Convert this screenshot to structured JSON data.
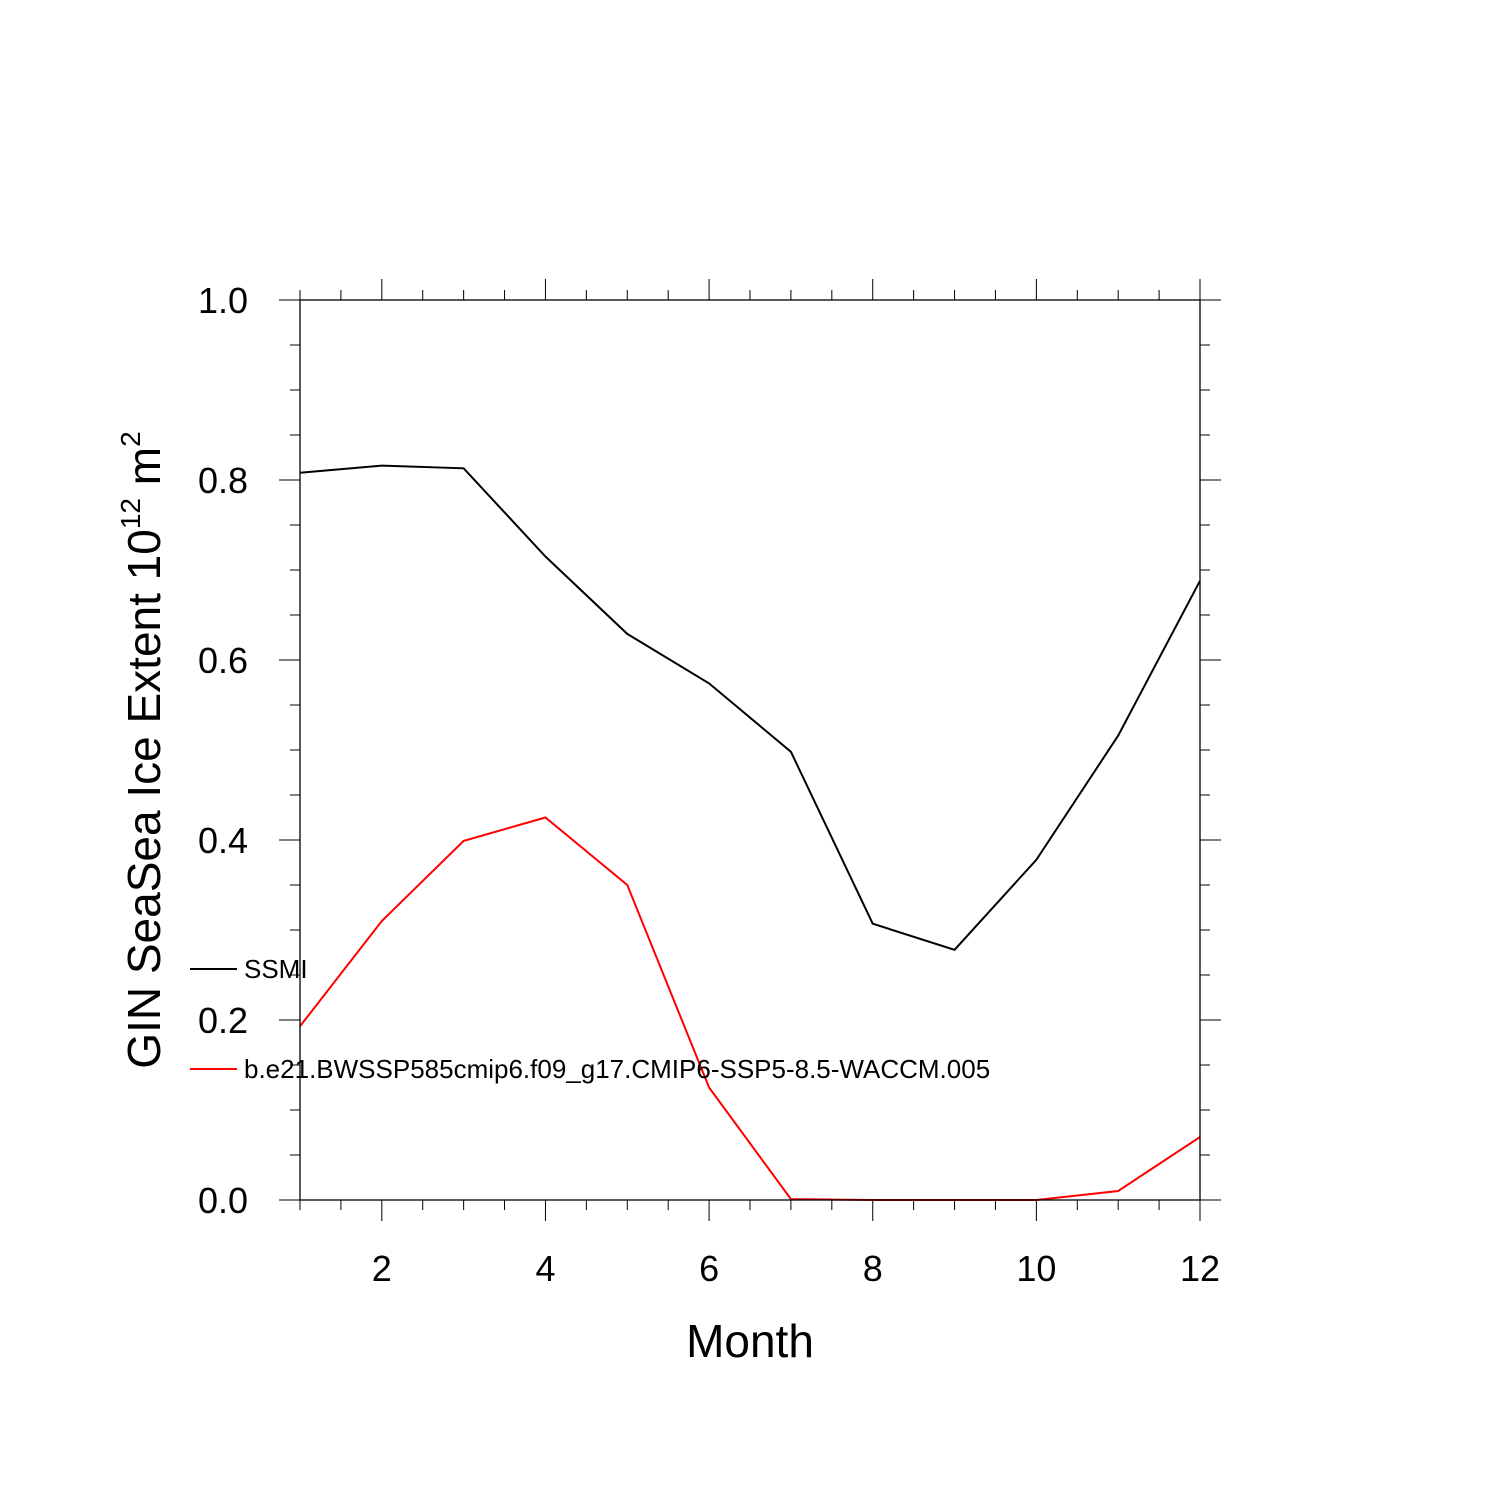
{
  "chart_data": {
    "type": "line",
    "title": "",
    "xlabel": "Month",
    "ylabel_main": "GIN SeaSea Ice Extent 10",
    "ylabel_exponent": "12",
    "ylabel_unit": " m",
    "ylabel_unit_exponent": "2",
    "x": [
      1,
      2,
      3,
      4,
      5,
      6,
      7,
      8,
      9,
      10,
      11,
      12
    ],
    "xlim": [
      1,
      12
    ],
    "ylim": [
      0,
      1
    ],
    "xticks": [
      "2",
      "4",
      "6",
      "8",
      "10",
      "12"
    ],
    "yticks": [
      "0.0",
      "0.2",
      "0.4",
      "0.6",
      "0.8",
      "1.0"
    ],
    "grid": false,
    "legend_position": "left, over plot",
    "series": [
      {
        "name": "SSMI",
        "color": "#000000",
        "values": [
          0.808,
          0.816,
          0.813,
          0.715,
          0.629,
          0.574,
          0.498,
          0.307,
          0.278,
          0.378,
          0.516,
          0.688
        ]
      },
      {
        "name": "b.e21.BWSSP585cmip6.f09_g17.CMIP6-SSP5-8.5-WACCM.005",
        "color": "#ff0000",
        "values": [
          0.193,
          0.31,
          0.399,
          0.425,
          0.35,
          0.125,
          0.001,
          0.0,
          0.0,
          0.0,
          0.01,
          0.07
        ]
      }
    ]
  }
}
